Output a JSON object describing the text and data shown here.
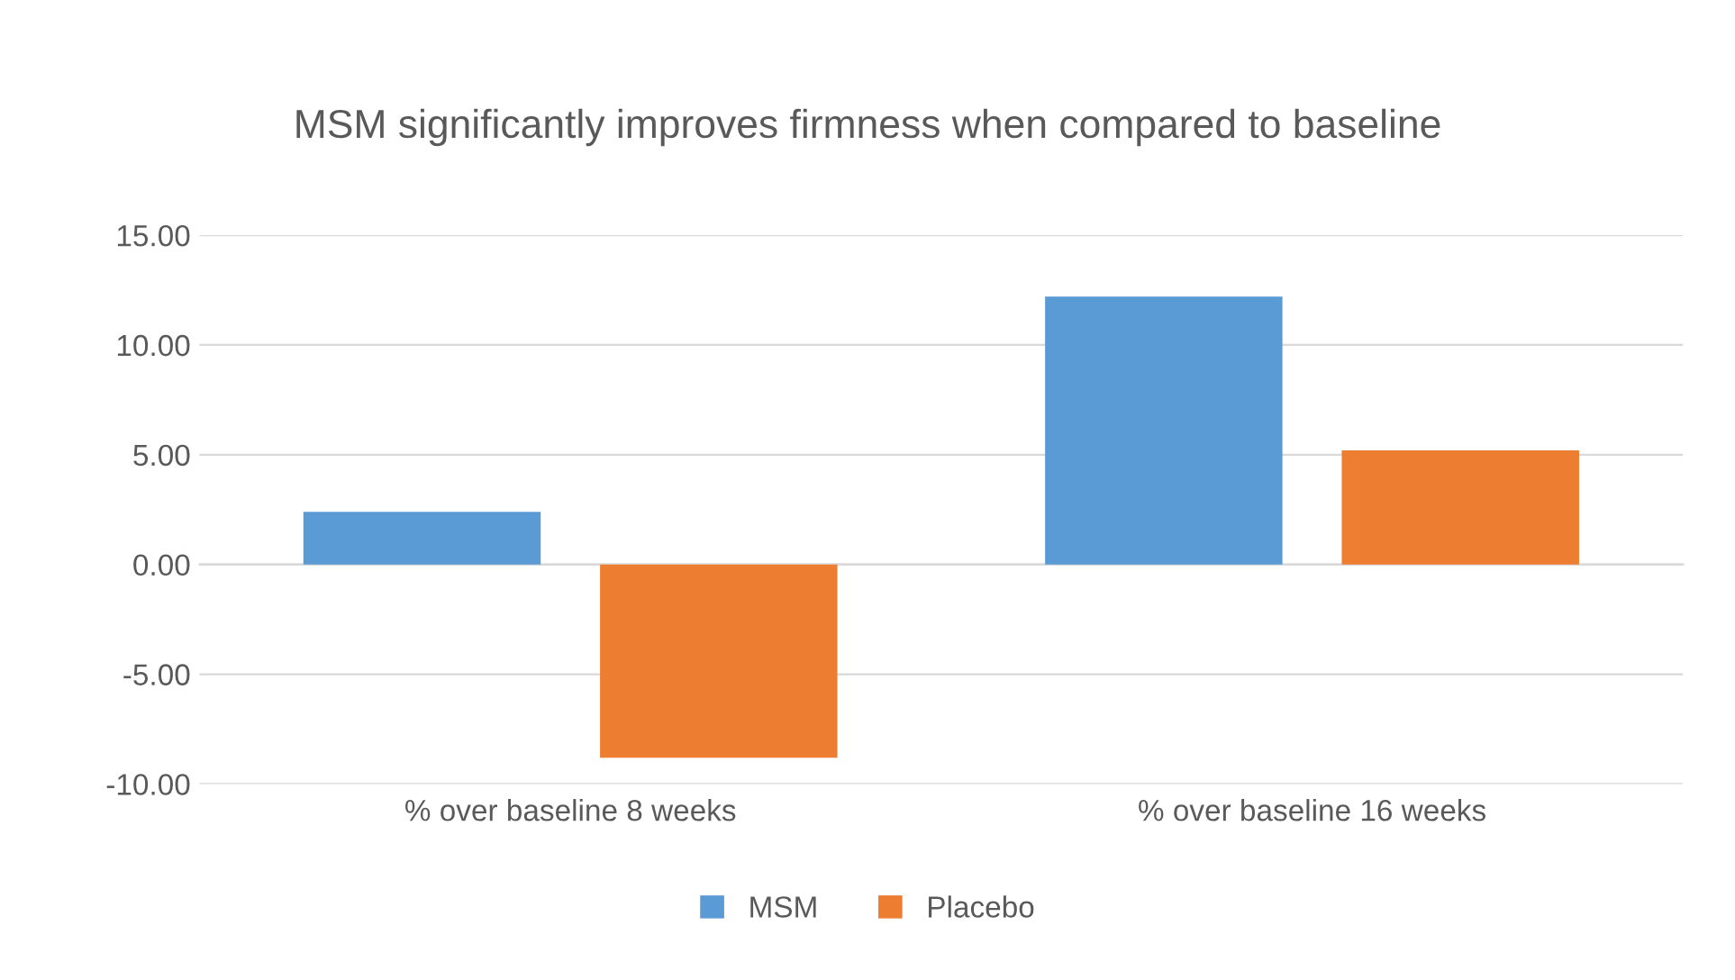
{
  "chart_data": {
    "type": "bar",
    "title": "MSM significantly improves firmness when compared to baseline",
    "categories": [
      "% over baseline 8 weeks",
      "% over baseline 16 weeks"
    ],
    "series": [
      {
        "name": "MSM",
        "color": "#5b9bd5",
        "values": [
          2.4,
          12.2
        ]
      },
      {
        "name": "Placebo",
        "color": "#ed7d31",
        "values": [
          -8.8,
          5.2
        ]
      }
    ],
    "ylim": [
      -10,
      15
    ],
    "yticks": [
      {
        "value": -10,
        "label": "-10.00"
      },
      {
        "value": -5,
        "label": "-5.00"
      },
      {
        "value": 0,
        "label": "0.00"
      },
      {
        "value": 5,
        "label": "5.00"
      },
      {
        "value": 10,
        "label": "10.00"
      },
      {
        "value": 15,
        "label": "15.00"
      }
    ],
    "grid": "y",
    "legend": "bottom"
  }
}
